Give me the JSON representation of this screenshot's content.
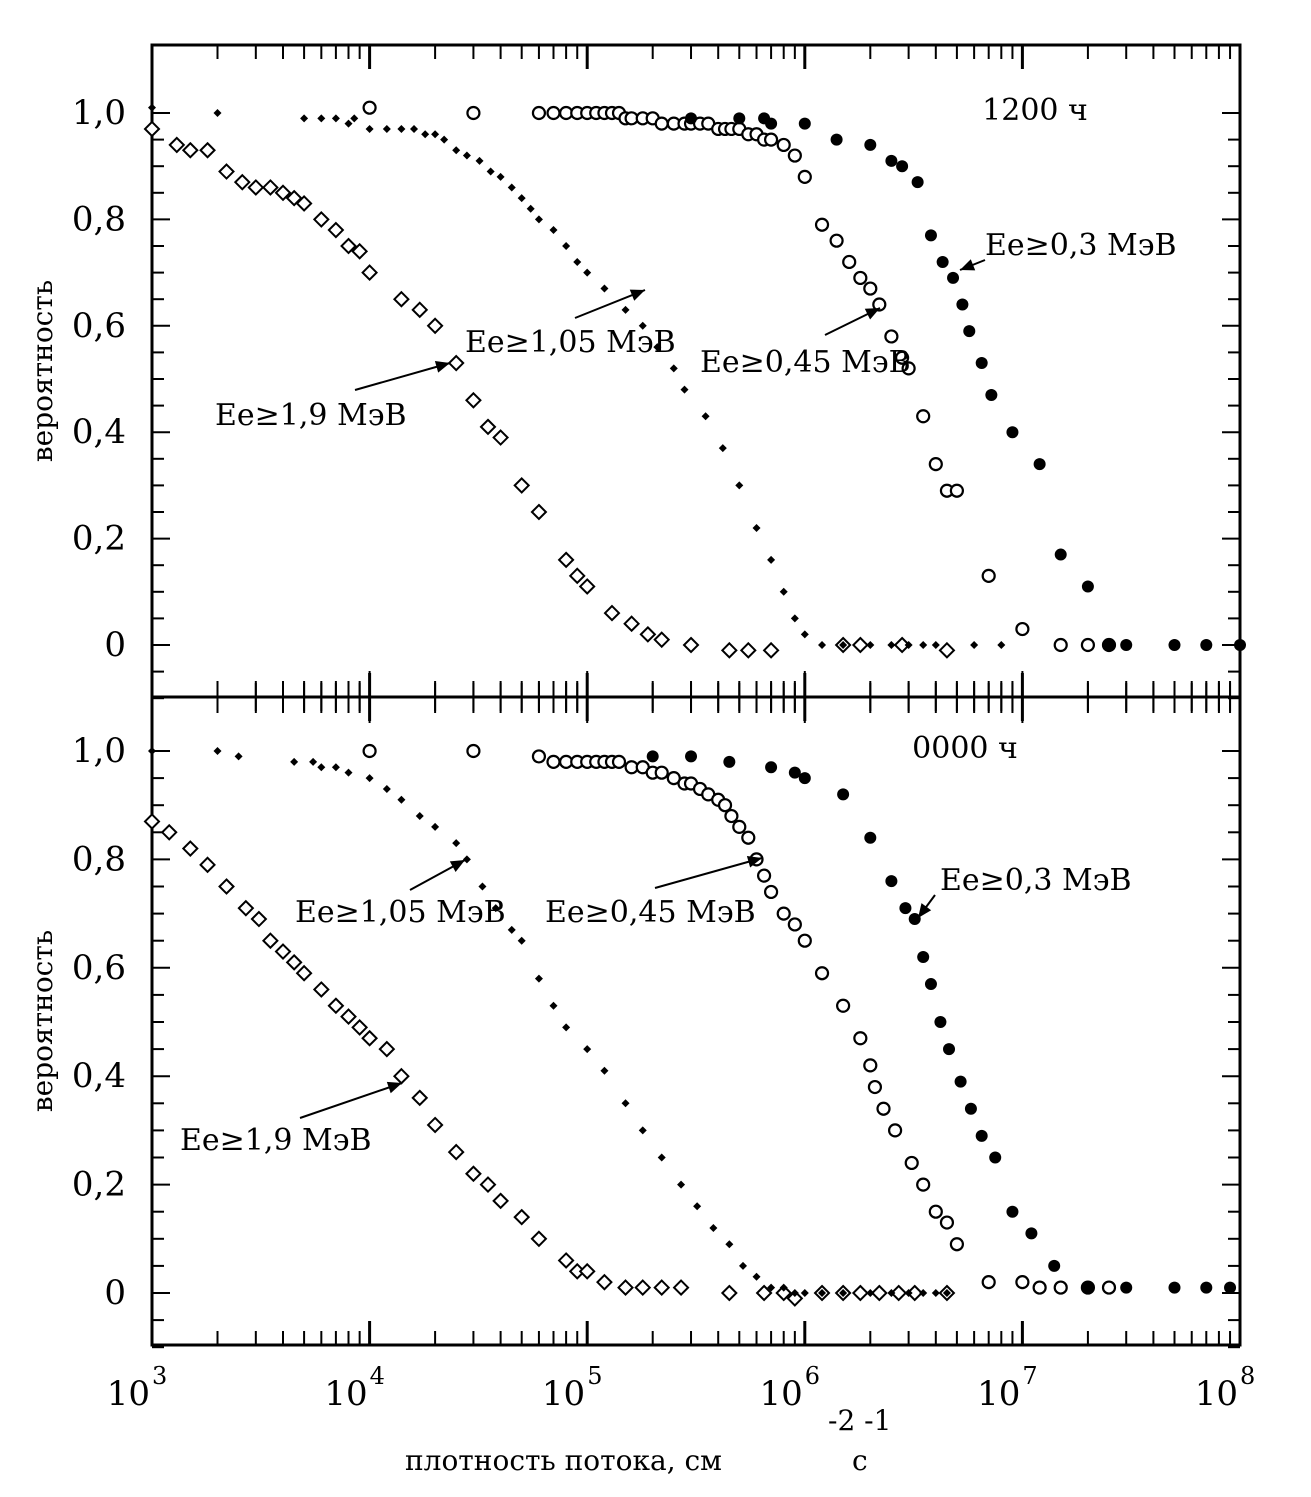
{
  "chart_data": [
    {
      "type": "scatter",
      "title": "1200 ч",
      "xscale": "log",
      "xlim": [
        1000,
        100000000
      ],
      "ylim": [
        -0.1,
        1.1
      ],
      "ylabel": "вероятность",
      "yticks": [
        "0",
        "0,2",
        "0,4",
        "0,6",
        "0,8",
        "1,0"
      ],
      "annotations": [
        {
          "label": "Ee≥1,9 МэВ",
          "series": "Ee≥1,9 МэВ"
        },
        {
          "label": "Ee≥1,05 МэВ",
          "series": "Ee≥1,05 МэВ"
        },
        {
          "label": "Ee≥0,45 МэВ",
          "series": "Ee≥0,45 МэВ"
        },
        {
          "label": "Ee≥0,3 МэВ",
          "series": "Ee≥0,3 МэВ"
        }
      ],
      "series": [
        {
          "name": "Ee≥1,9 МэВ",
          "marker": "open-diamond",
          "x": [
            1000,
            1300,
            1500,
            1800,
            2200,
            2600,
            3000,
            3500,
            4000,
            4500,
            5000,
            6000,
            7000,
            8000,
            9000,
            10000,
            14000,
            17000,
            20000,
            25000,
            30000,
            35000,
            40000,
            50000,
            60000,
            80000,
            90000,
            100000,
            130000,
            160000,
            190000,
            220000,
            300000,
            450000,
            550000,
            700000,
            1500000,
            1800000,
            2800000,
            4500000
          ],
          "y": [
            0.97,
            0.94,
            0.93,
            0.93,
            0.89,
            0.87,
            0.86,
            0.86,
            0.85,
            0.84,
            0.83,
            0.8,
            0.78,
            0.75,
            0.74,
            0.7,
            0.65,
            0.63,
            0.6,
            0.53,
            0.46,
            0.41,
            0.39,
            0.3,
            0.25,
            0.16,
            0.13,
            0.11,
            0.06,
            0.04,
            0.02,
            0.01,
            0.0,
            -0.01,
            -0.01,
            -0.01,
            0.0,
            0.0,
            0.0,
            -0.01
          ]
        },
        {
          "name": "Ee≥1,05 МэВ",
          "marker": "small-filled-diamond",
          "x": [
            1000,
            2000,
            5000,
            6000,
            7000,
            8000,
            8500,
            10000,
            12000,
            14000,
            16000,
            18000,
            20000,
            22000,
            25000,
            28000,
            32000,
            36000,
            40000,
            45000,
            50000,
            55000,
            60000,
            70000,
            80000,
            90000,
            100000,
            120000,
            150000,
            180000,
            210000,
            250000,
            280000,
            350000,
            420000,
            500000,
            600000,
            700000,
            800000,
            900000,
            1000000,
            1200000,
            1500000,
            2000000,
            2500000,
            3000000,
            3500000,
            4000000,
            6000000,
            8000000
          ],
          "y": [
            1.01,
            1.0,
            0.99,
            0.99,
            0.99,
            0.98,
            0.99,
            0.97,
            0.97,
            0.97,
            0.97,
            0.96,
            0.96,
            0.95,
            0.93,
            0.92,
            0.91,
            0.89,
            0.88,
            0.86,
            0.84,
            0.82,
            0.8,
            0.78,
            0.75,
            0.72,
            0.7,
            0.67,
            0.63,
            0.6,
            0.56,
            0.52,
            0.48,
            0.43,
            0.37,
            0.3,
            0.22,
            0.16,
            0.1,
            0.05,
            0.02,
            0.0,
            0.0,
            0.0,
            0.0,
            0.0,
            0.0,
            0.0,
            0.0,
            0.0
          ]
        },
        {
          "name": "Ee≥0,45 МэВ",
          "marker": "open-circle",
          "x": [
            10000,
            30000,
            60000,
            70000,
            80000,
            90000,
            100000,
            110000,
            120000,
            130000,
            140000,
            150000,
            160000,
            180000,
            200000,
            220000,
            250000,
            280000,
            300000,
            330000,
            360000,
            400000,
            430000,
            460000,
            500000,
            550000,
            600000,
            650000,
            700000,
            800000,
            900000,
            1000000,
            1200000,
            1400000,
            1600000,
            1800000,
            2000000,
            2200000,
            2500000,
            2800000,
            3000000,
            3500000,
            4000000,
            4500000,
            5000000,
            7000000,
            10000000,
            15000000,
            20000000,
            25000000
          ],
          "y": [
            1.01,
            1.0,
            1.0,
            1.0,
            1.0,
            1.0,
            1.0,
            1.0,
            1.0,
            1.0,
            1.0,
            0.99,
            0.99,
            0.99,
            0.99,
            0.98,
            0.98,
            0.98,
            0.98,
            0.98,
            0.98,
            0.97,
            0.97,
            0.97,
            0.97,
            0.96,
            0.96,
            0.95,
            0.95,
            0.94,
            0.92,
            0.88,
            0.79,
            0.76,
            0.72,
            0.69,
            0.67,
            0.64,
            0.58,
            0.54,
            0.52,
            0.43,
            0.34,
            0.29,
            0.29,
            0.13,
            0.03,
            0.0,
            0.0,
            0.0
          ]
        },
        {
          "name": "Ee≥0,3 МэВ",
          "marker": "filled-circle",
          "x": [
            300000,
            500000,
            650000,
            700000,
            1000000,
            1400000,
            2000000,
            2500000,
            2800000,
            3300000,
            3800000,
            4300000,
            4800000,
            5300000,
            5700000,
            6500000,
            7200000,
            9000000,
            12000000,
            15000000,
            20000000,
            25000000,
            30000000,
            50000000,
            70000000,
            100000000
          ],
          "y": [
            0.99,
            0.99,
            0.99,
            0.98,
            0.98,
            0.95,
            0.94,
            0.91,
            0.9,
            0.87,
            0.77,
            0.72,
            0.69,
            0.64,
            0.59,
            0.53,
            0.47,
            0.4,
            0.34,
            0.17,
            0.11,
            0.0,
            0.0,
            0.0,
            0.0,
            0.0
          ]
        }
      ]
    },
    {
      "type": "scatter",
      "title": "0000 ч",
      "xscale": "log",
      "xlim": [
        1000,
        100000000
      ],
      "ylim": [
        -0.1,
        1.1
      ],
      "xlabel": "плотность потока, см",
      "xlabel_superscript": "-2  -1",
      "xlabel_unit": "с",
      "ylabel": "вероятность",
      "yticks": [
        "0",
        "0,2",
        "0,4",
        "0,6",
        "0,8",
        "1,0"
      ],
      "xticks": [
        {
          "base": "10",
          "exp": "3"
        },
        {
          "base": "10",
          "exp": "4"
        },
        {
          "base": "10",
          "exp": "5"
        },
        {
          "base": "10",
          "exp": "6"
        },
        {
          "base": "10",
          "exp": "7"
        },
        {
          "base": "10",
          "exp": "8"
        }
      ],
      "annotations": [
        {
          "label": "Ee≥1,9 МэВ",
          "series": "Ee≥1,9 МэВ"
        },
        {
          "label": "Ee≥1,05 МэВ",
          "series": "Ee≥1,05 МэВ"
        },
        {
          "label": "Ee≥0,45 МэВ",
          "series": "Ee≥0,45 МэВ"
        },
        {
          "label": "Ee≥0,3 МэВ",
          "series": "Ee≥0,3 МэВ"
        }
      ],
      "series": [
        {
          "name": "Ee≥1,9 МэВ",
          "marker": "open-diamond",
          "x": [
            1000,
            1200,
            1500,
            1800,
            2200,
            2700,
            3100,
            3500,
            4000,
            4500,
            5000,
            6000,
            7000,
            8000,
            9000,
            10000,
            12000,
            14000,
            17000,
            20000,
            25000,
            30000,
            35000,
            40000,
            50000,
            60000,
            80000,
            90000,
            100000,
            120000,
            150000,
            180000,
            220000,
            270000,
            450000,
            650000,
            800000,
            900000,
            1200000,
            1500000,
            1800000,
            2200000,
            2700000,
            3200000,
            4500000
          ],
          "y": [
            0.87,
            0.85,
            0.82,
            0.79,
            0.75,
            0.71,
            0.69,
            0.65,
            0.63,
            0.61,
            0.59,
            0.56,
            0.53,
            0.51,
            0.49,
            0.47,
            0.45,
            0.4,
            0.36,
            0.31,
            0.26,
            0.22,
            0.2,
            0.17,
            0.14,
            0.1,
            0.06,
            0.04,
            0.04,
            0.02,
            0.01,
            0.01,
            0.01,
            0.01,
            0.0,
            0.0,
            0.0,
            -0.01,
            0.0,
            0.0,
            0.0,
            0.0,
            0.0,
            0.0,
            0.0
          ]
        },
        {
          "name": "Ee≥1,05 МэВ",
          "marker": "small-filled-diamond",
          "x": [
            1000,
            2000,
            2500,
            4500,
            5500,
            6000,
            7000,
            8000,
            10000,
            12000,
            14000,
            17000,
            20000,
            25000,
            28000,
            33000,
            38000,
            45000,
            50000,
            60000,
            70000,
            80000,
            100000,
            120000,
            150000,
            180000,
            220000,
            270000,
            320000,
            380000,
            450000,
            520000,
            600000,
            700000,
            800000,
            900000,
            1000000,
            1200000,
            1500000,
            2000000,
            2500000,
            3000000,
            3500000,
            4000000,
            4500000
          ],
          "y": [
            1.0,
            1.0,
            0.99,
            0.98,
            0.98,
            0.97,
            0.97,
            0.96,
            0.95,
            0.93,
            0.91,
            0.88,
            0.86,
            0.83,
            0.8,
            0.75,
            0.71,
            0.67,
            0.65,
            0.58,
            0.53,
            0.49,
            0.45,
            0.41,
            0.35,
            0.3,
            0.25,
            0.2,
            0.16,
            0.12,
            0.09,
            0.05,
            0.03,
            0.01,
            0.01,
            0.0,
            0.0,
            0.0,
            0.0,
            0.0,
            0.0,
            0.0,
            0.0,
            0.0,
            0.0
          ]
        },
        {
          "name": "Ee≥0,45 МэВ",
          "marker": "open-circle",
          "x": [
            10000,
            30000,
            60000,
            70000,
            80000,
            90000,
            100000,
            110000,
            120000,
            130000,
            140000,
            160000,
            180000,
            200000,
            220000,
            250000,
            280000,
            300000,
            330000,
            360000,
            400000,
            430000,
            460000,
            500000,
            550000,
            600000,
            650000,
            700000,
            800000,
            900000,
            1000000,
            1200000,
            1500000,
            1800000,
            2000000,
            2100000,
            2300000,
            2600000,
            3100000,
            3500000,
            4000000,
            4500000,
            5000000,
            7000000,
            10000000,
            12000000,
            15000000,
            20000000,
            25000000
          ],
          "y": [
            1.0,
            1.0,
            0.99,
            0.98,
            0.98,
            0.98,
            0.98,
            0.98,
            0.98,
            0.98,
            0.98,
            0.97,
            0.97,
            0.96,
            0.96,
            0.95,
            0.94,
            0.94,
            0.93,
            0.92,
            0.91,
            0.9,
            0.88,
            0.86,
            0.84,
            0.8,
            0.77,
            0.74,
            0.7,
            0.68,
            0.65,
            0.59,
            0.53,
            0.47,
            0.42,
            0.38,
            0.34,
            0.3,
            0.24,
            0.2,
            0.15,
            0.13,
            0.09,
            0.02,
            0.02,
            0.01,
            0.01,
            0.01,
            0.01
          ]
        },
        {
          "name": "Ee≥0,3 МэВ",
          "marker": "filled-circle",
          "x": [
            200000,
            300000,
            450000,
            700000,
            900000,
            1000000,
            1500000,
            2000000,
            2500000,
            2900000,
            3200000,
            3500000,
            3800000,
            4200000,
            4600000,
            5200000,
            5800000,
            6500000,
            7500000,
            9000000,
            11000000,
            14000000,
            20000000,
            30000000,
            50000000,
            70000000,
            90000000
          ],
          "y": [
            0.99,
            0.99,
            0.98,
            0.97,
            0.96,
            0.95,
            0.92,
            0.84,
            0.76,
            0.71,
            0.69,
            0.62,
            0.57,
            0.5,
            0.45,
            0.39,
            0.34,
            0.29,
            0.25,
            0.15,
            0.11,
            0.05,
            0.01,
            0.01,
            0.01,
            0.01,
            0.01
          ]
        }
      ]
    }
  ]
}
